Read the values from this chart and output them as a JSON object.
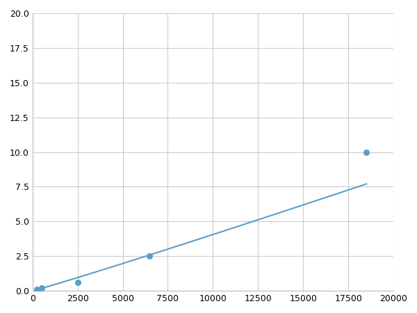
{
  "x": [
    250,
    500,
    2500,
    6500,
    18500
  ],
  "y": [
    0.1,
    0.2,
    0.6,
    2.5,
    10.0
  ],
  "line_color": "#5b9ec9",
  "marker_color": "#5b9ec9",
  "marker_size": 6,
  "xlim": [
    0,
    20000
  ],
  "ylim": [
    0,
    20
  ],
  "xticks": [
    0,
    2500,
    5000,
    7500,
    10000,
    12500,
    15000,
    17500,
    20000
  ],
  "yticks": [
    0.0,
    2.5,
    5.0,
    7.5,
    10.0,
    12.5,
    15.0,
    17.5,
    20.0
  ],
  "grid_color": "#cccccc",
  "background_color": "#ffffff",
  "figure_bg": "#ffffff"
}
